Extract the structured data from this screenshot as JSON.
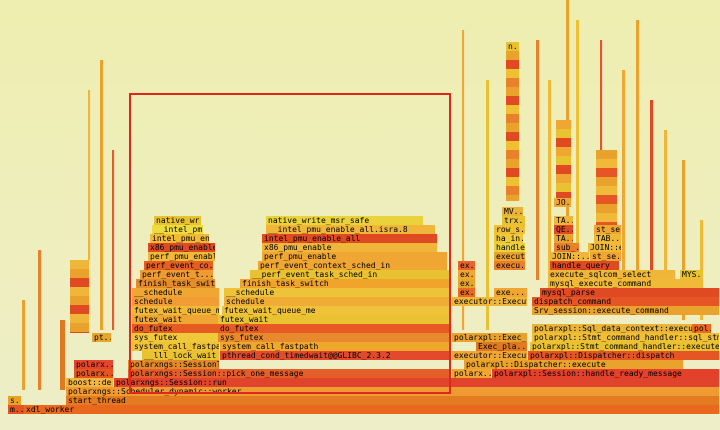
{
  "frames": [
    {
      "label": "m...",
      "col": "#e45524"
    },
    {
      "label": "xdl_worker",
      "col": "#e9681e"
    },
    {
      "label": "s..",
      "col": "#e7a424"
    },
    {
      "label": "start_thread",
      "col": "#e37b20"
    },
    {
      "label": "polarxngs::Scheduler_dynamic::worker",
      "col": "#f09b31"
    },
    {
      "label": "boost::de...",
      "col": "#efb540"
    },
    {
      "label": "polarxngs::Session::run",
      "col": "#e0442c"
    },
    {
      "label": "polarxngs::Session::pick_one_message",
      "col": "#e55d28"
    },
    {
      "label": "polarx...",
      "col": "#e3561e"
    },
    {
      "label": "polarxngs::SessionTaskQueue::pop",
      "col": "#e28a2a"
    },
    {
      "label": "pt...",
      "col": "#e8a52c"
    },
    {
      "label": "polarx...",
      "col": "#e4452c"
    },
    {
      "label": "__lll_lock_wait",
      "col": "#e9c232"
    },
    {
      "label": "pthread_cond_timedwait@@GLIBC_2.3.2",
      "col": "#e34a2c"
    },
    {
      "label": "system_call_fastpa...",
      "col": "#f0c238"
    },
    {
      "label": "system_call_fastpath",
      "col": "#f0a82c"
    },
    {
      "label": "sys_futex",
      "col": "#f0c93a"
    },
    {
      "label": "sys_futex",
      "col": "#e88a2c"
    },
    {
      "label": "do_futex",
      "col": "#e75b23"
    },
    {
      "label": "do_futex",
      "col": "#e85a24"
    },
    {
      "label": "futex_wait",
      "col": "#f0a632"
    },
    {
      "label": "futex_wait",
      "col": "#e9c232"
    },
    {
      "label": "futex_wait_queue_me",
      "col": "#f0ba38"
    },
    {
      "label": "futex_wait_queue_me",
      "col": "#efc23a"
    },
    {
      "label": "schedule",
      "col": "#f29d33"
    },
    {
      "label": "schedule",
      "col": "#f0ad35"
    },
    {
      "label": "__schedule",
      "col": "#f0a632"
    },
    {
      "label": "__schedule",
      "col": "#eec33a"
    },
    {
      "label": "finish_task_switch",
      "col": "#e48b2a"
    },
    {
      "label": "finish_task_switch",
      "col": "#f0a42c"
    },
    {
      "label": "perf_event_t...",
      "col": "#ee9b32"
    },
    {
      "label": "__perf_event_task_sched_in",
      "col": "#e9c232"
    },
    {
      "label": "perf_event_co...",
      "col": "#e55e22"
    },
    {
      "label": "perf_event_context_sched_in",
      "col": "#f0a632"
    },
    {
      "label": "perf_pmu_enable",
      "col": "#f0ba38"
    },
    {
      "label": "perf_pmu_enable",
      "col": "#f0a632"
    },
    {
      "label": "x86_pmu_enable",
      "col": "#e04a23"
    },
    {
      "label": "x86_pmu_enable",
      "col": "#f0b63a"
    },
    {
      "label": "intel_pmu_en...",
      "col": "#f0ba38"
    },
    {
      "label": "intel_pmu_enable_all",
      "col": "#e04a23"
    },
    {
      "label": "__intel_pm...",
      "col": "#eedc3c"
    },
    {
      "label": "__intel_pmu_enable_all.isra.8",
      "col": "#f0b63a"
    },
    {
      "label": "native_wr...",
      "col": "#e9c232"
    },
    {
      "label": "native_write_msr_safe",
      "col": "#e9d23a"
    },
    {
      "label": "polarx...",
      "col": "#f0a632"
    },
    {
      "label": "polarxpl::Session::handle_ready_message",
      "col": "#e4402a"
    },
    {
      "label": "executor::Execut...",
      "col": "#f0a632"
    },
    {
      "label": "polarxpl::Dispatcher::execute",
      "col": "#e9a22c"
    },
    {
      "label": "polarxpl::Exec_pla...",
      "col": "#e9a22c"
    },
    {
      "label": "polarxpl::Dispatcher::dispatch",
      "col": "#e55624"
    },
    {
      "label": "executor::Executo...",
      "col": "#f0b63a"
    },
    {
      "label": "ex...",
      "col": "#e8a52c"
    },
    {
      "label": "Exec_pla...",
      "col": "#e07a22"
    },
    {
      "label": "polarxpl::Stmt_command_handler::execute",
      "col": "#e9c232"
    },
    {
      "label": "ex...",
      "col": "#eb6a22"
    },
    {
      "label": "exe...",
      "col": "#f0a632"
    },
    {
      "label": "Srv_session::execute_command",
      "col": "#e9a22c"
    },
    {
      "label": "polarxpl::Stmt_command_handler::sql_stmt...",
      "col": "#f0c034"
    },
    {
      "label": "polarxpl::Sql_data_context::execute_sql",
      "col": "#e9b43a"
    },
    {
      "label": "pol...",
      "col": "#eb6a22"
    },
    {
      "label": "dispatch_command",
      "col": "#e55526"
    },
    {
      "label": "mysql_parse",
      "col": "#e04a23"
    },
    {
      "label": "ex...",
      "col": "#f0a632"
    },
    {
      "label": "mysql_execute_command",
      "col": "#f0ba38"
    },
    {
      "label": "execute_sqlcom_select",
      "col": "#f0b63a"
    },
    {
      "label": "MYS...",
      "col": "#e9c232"
    },
    {
      "label": "ex...",
      "col": "#e8642a"
    },
    {
      "label": "execu...",
      "col": "#e9802a"
    },
    {
      "label": "handle_query",
      "col": "#e04a23"
    },
    {
      "label": "execut...",
      "col": "#e9a22c"
    },
    {
      "label": "JOIN::...",
      "col": "#f0b63a"
    },
    {
      "label": "st_se...",
      "col": "#f0a632"
    },
    {
      "label": "handle...",
      "col": "#e9d23a"
    },
    {
      "label": "sub_...",
      "col": "#e9802a"
    },
    {
      "label": "JOIN::e...",
      "col": "#f0ba38"
    },
    {
      "label": "ha_in...",
      "col": "#f0c93a"
    },
    {
      "label": "TA...",
      "col": "#e9a22c"
    },
    {
      "label": "TAB...",
      "col": "#f0ba38"
    },
    {
      "label": "row_s...",
      "col": "#f0c034"
    },
    {
      "label": "QE...",
      "col": "#e04a23"
    },
    {
      "label": "st_se...",
      "col": "#f0a632"
    },
    {
      "label": "trx...",
      "col": "#e9c232"
    },
    {
      "label": "TA...",
      "col": "#f0b63a"
    },
    {
      "label": "MV...",
      "col": "#e9b43a"
    },
    {
      "label": "JO...",
      "col": "#f0a632"
    },
    {
      "label": "n...",
      "col": "#e9c232"
    }
  ],
  "colors": {
    "bg_top": "#eeeeb0",
    "bg_bottom": "#eeeec8",
    "zoom_box": "#e0271e"
  }
}
